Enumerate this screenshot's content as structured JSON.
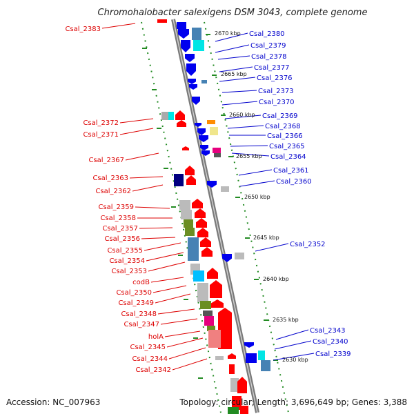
{
  "title": "Chromohalobacter salexigens DSM 3043, complete genome",
  "accession": "Accession: NC_007963",
  "summary": "Topology: circular; Length: 3,696,649 bp; Genes: 3,388",
  "kbp_labels": [
    "2670 kbp",
    "2665 kbp",
    "2660 kbp",
    "2655 kbp",
    "2650 kbp",
    "2645 kbp",
    "2640 kbp",
    "2635 kbp",
    "2630 kbp"
  ],
  "left_labels": [
    "Csal_2383",
    "Csal_2372",
    "Csal_2371",
    "Csal_2367",
    "Csal_2363",
    "Csal_2362",
    "Csal_2359",
    "Csal_2358",
    "Csal_2357",
    "Csal_2356",
    "Csal_2355",
    "Csal_2354",
    "Csal_2353",
    "codB",
    "Csal_2350",
    "Csal_2349",
    "Csal_2348",
    "Csal_2347",
    "holA",
    "Csal_2345",
    "Csal_2344",
    "Csal_2342"
  ],
  "right_labels": [
    "Csal_2380",
    "Csal_2379",
    "Csal_2378",
    "Csal_2377",
    "Csal_2376",
    "Csal_2373",
    "Csal_2370",
    "Csal_2369",
    "Csal_2368",
    "Csal_2366",
    "Csal_2365",
    "Csal_2364",
    "Csal_2361",
    "Csal_2360",
    "Csal_2352",
    "Csal_2343",
    "Csal_2340",
    "Csal_2339"
  ],
  "colors": {
    "forward": "#ff0000",
    "reverse": "#0000ee",
    "backbone": "#888888",
    "ticks": "#228B22"
  }
}
